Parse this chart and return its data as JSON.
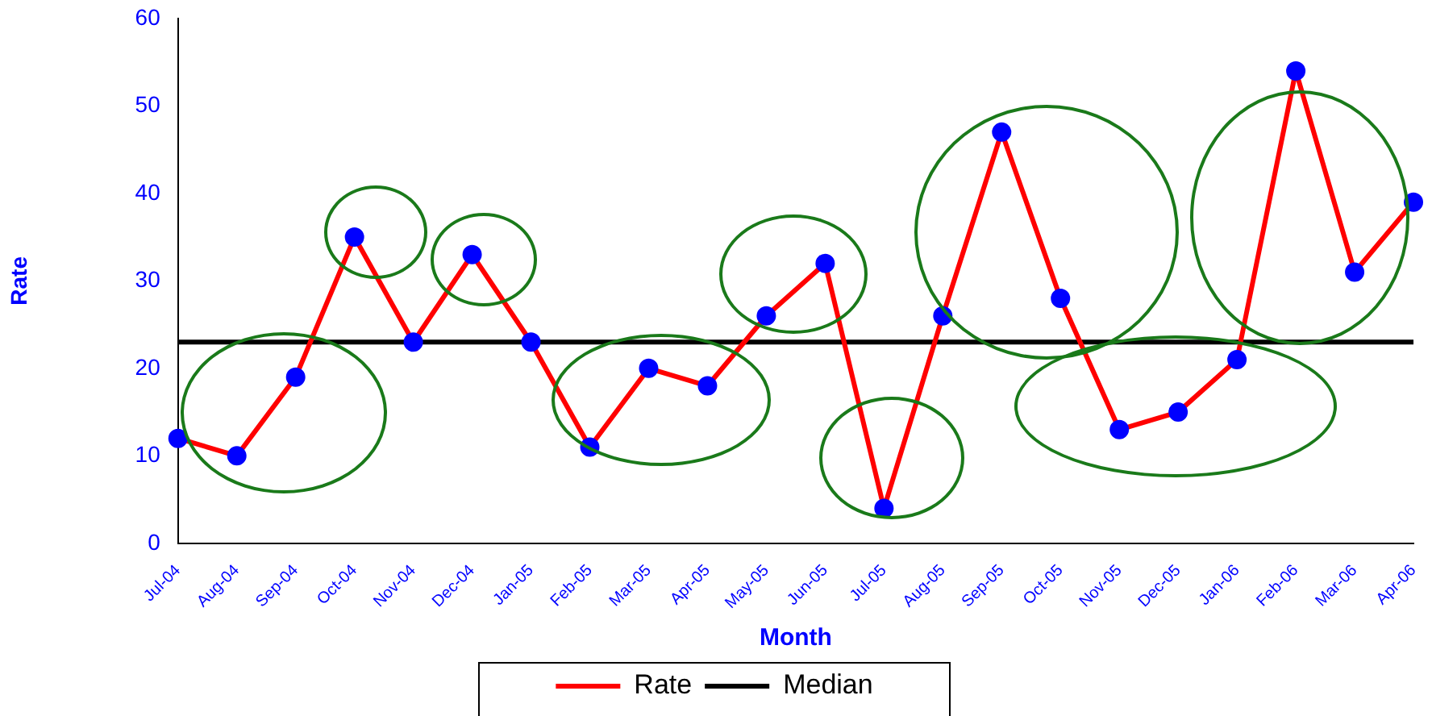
{
  "chart_data": {
    "type": "line",
    "xlabel": "Month",
    "ylabel": "Rate",
    "categories": [
      "Jul-04",
      "Aug-04",
      "Sep-04",
      "Oct-04",
      "Nov-04",
      "Dec-04",
      "Jan-05",
      "Feb-05",
      "Mar-05",
      "Apr-05",
      "May-05",
      "Jun-05",
      "Jul-05",
      "Aug-05",
      "Sep-05",
      "Oct-05",
      "Nov-05",
      "Dec-05",
      "Jan-06",
      "Feb-06",
      "Mar-06",
      "Apr-06"
    ],
    "series": [
      {
        "name": "Rate",
        "color": "#ff0000",
        "values": [
          12,
          10,
          19,
          35,
          23,
          33,
          23,
          11,
          20,
          18,
          26,
          32,
          4,
          26,
          47,
          28,
          13,
          15,
          21,
          54,
          31,
          39
        ]
      }
    ],
    "ref_lines": [
      {
        "axis": "y",
        "value": 23,
        "label": "Median",
        "color": "#000000"
      }
    ],
    "ylim": [
      0,
      60
    ],
    "yticks": [
      0,
      10,
      20,
      30,
      40,
      50,
      60
    ],
    "grid": false,
    "legend": "bottom",
    "marker": "circle",
    "line_style": "solid"
  }
}
